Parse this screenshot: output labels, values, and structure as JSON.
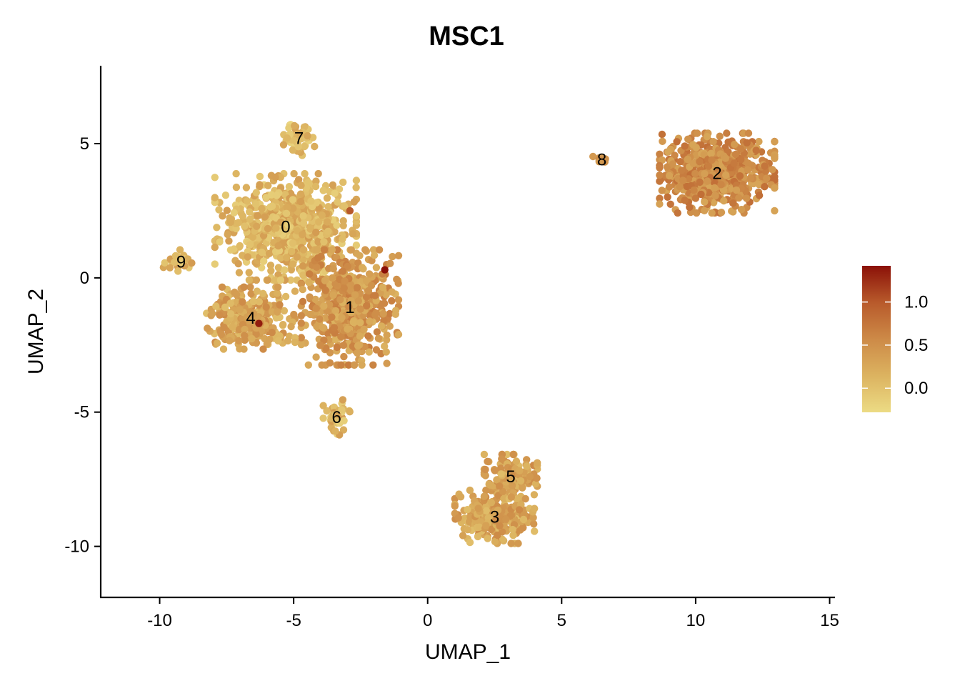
{
  "chart_data": {
    "type": "scatter",
    "title": "MSC1",
    "xlabel": "UMAP_1",
    "ylabel": "UMAP_2",
    "xlim": [
      -12.2,
      15.2
    ],
    "ylim": [
      -11.9,
      7.9
    ],
    "xticks": [
      -10,
      -5,
      0,
      5,
      10,
      15
    ],
    "yticks": [
      5,
      0,
      -5,
      -10
    ],
    "xtick_labels": [
      "-10",
      "-5",
      "0",
      "5",
      "10",
      "15"
    ],
    "ytick_labels": [
      "5",
      "0",
      "-5",
      "-10"
    ],
    "grid": false,
    "colorbar": {
      "range": [
        -0.28,
        1.42
      ],
      "ticks": [
        1.0,
        0.5,
        0.0
      ],
      "tick_labels": [
        "1.0",
        "0.5",
        "0.0"
      ],
      "colors": [
        "#ecdb84",
        "#dcb360",
        "#cd8a47",
        "#b85a2b",
        "#8b1108"
      ],
      "placement": "right"
    },
    "clusters": [
      {
        "label": "0",
        "x": -5.3,
        "y": 1.9,
        "spread": [
          1.6,
          1.2
        ],
        "n": 700,
        "mean_expr": 0.12
      },
      {
        "label": "1",
        "x": -2.9,
        "y": -1.1,
        "spread": [
          1.1,
          1.3
        ],
        "n": 520,
        "mean_expr": 0.42
      },
      {
        "label": "2",
        "x": 10.8,
        "y": 3.9,
        "spread": [
          1.3,
          0.9
        ],
        "n": 650,
        "mean_expr": 0.55
      },
      {
        "label": "3",
        "x": 2.5,
        "y": -8.9,
        "spread": [
          0.9,
          0.6
        ],
        "n": 260,
        "mean_expr": 0.3
      },
      {
        "label": "4",
        "x": -6.6,
        "y": -1.5,
        "spread": [
          1.0,
          0.7
        ],
        "n": 300,
        "mean_expr": 0.3
      },
      {
        "label": "5",
        "x": 3.1,
        "y": -7.4,
        "spread": [
          0.6,
          0.5
        ],
        "n": 140,
        "mean_expr": 0.3
      },
      {
        "label": "6",
        "x": -3.4,
        "y": -5.2,
        "spread": [
          0.3,
          0.4
        ],
        "n": 40,
        "mean_expr": 0.12
      },
      {
        "label": "7",
        "x": -4.8,
        "y": 5.2,
        "spread": [
          0.35,
          0.45
        ],
        "n": 50,
        "mean_expr": 0.05
      },
      {
        "label": "8",
        "x": 6.5,
        "y": 4.4,
        "spread": [
          0.2,
          0.1
        ],
        "n": 10,
        "mean_expr": 0.3
      },
      {
        "label": "9",
        "x": -9.2,
        "y": 0.6,
        "spread": [
          0.4,
          0.3
        ],
        "n": 25,
        "mean_expr": 0.15
      }
    ],
    "highlight_points": [
      {
        "x": -1.6,
        "y": 0.3,
        "value": 1.42
      },
      {
        "x": -6.3,
        "y": -1.7,
        "value": 1.35
      },
      {
        "x": -2.9,
        "y": 2.5,
        "value": 1.0
      }
    ]
  }
}
